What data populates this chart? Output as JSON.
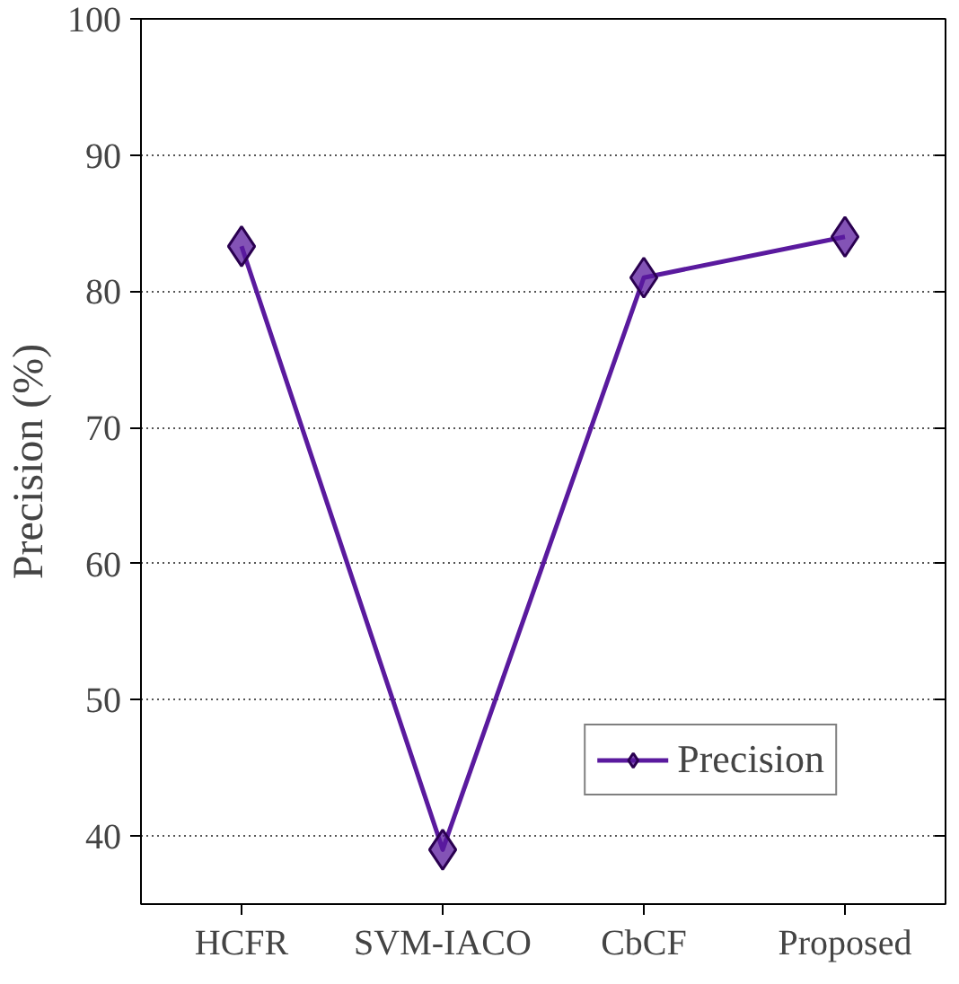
{
  "chart_data": {
    "type": "line",
    "ylabel": "Precision (%)",
    "categories": [
      "HCFR",
      "SVM-IACO",
      "CbCF",
      "Proposed"
    ],
    "series": [
      {
        "name": "Precision",
        "color": "#5a1a9e",
        "values": [
          83.3,
          39,
          81,
          84
        ]
      }
    ],
    "ylim": [
      35,
      100
    ],
    "yticks": [
      40,
      50,
      60,
      70,
      80,
      90,
      100
    ],
    "grid": "y",
    "legend": "bottom right",
    "marker": "diamond",
    "line_style": "solid"
  }
}
